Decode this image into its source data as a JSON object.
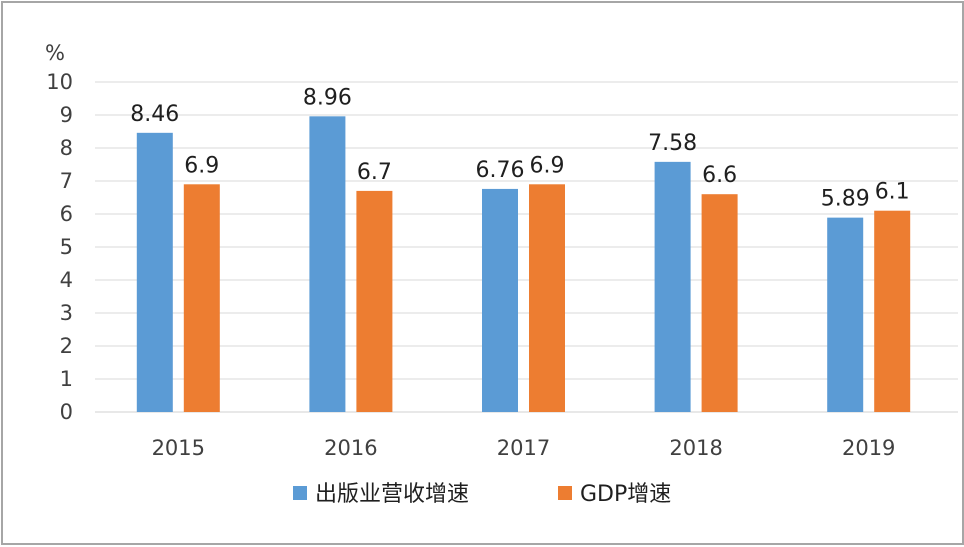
{
  "chart_data": {
    "type": "bar",
    "unit": "%",
    "categories": [
      "2015",
      "2016",
      "2017",
      "2018",
      "2019"
    ],
    "series": [
      {
        "name": "出版业营收增速",
        "color": "#5b9bd5",
        "values": [
          8.46,
          8.96,
          6.76,
          7.58,
          5.89
        ],
        "labels": [
          "8.46",
          "8.96",
          "6.76",
          "7.58",
          "5.89"
        ]
      },
      {
        "name": "GDP增速",
        "color": "#ed7d31",
        "values": [
          6.9,
          6.7,
          6.9,
          6.6,
          6.1
        ],
        "labels": [
          "6.9",
          "6.7",
          "6.9",
          "6.6",
          "6.1"
        ]
      }
    ],
    "yticks": [
      "0",
      "1",
      "2",
      "3",
      "4",
      "5",
      "6",
      "7",
      "8",
      "9",
      "10"
    ],
    "ylim": [
      0,
      10
    ],
    "grid": true,
    "legend_position": "bottom"
  }
}
